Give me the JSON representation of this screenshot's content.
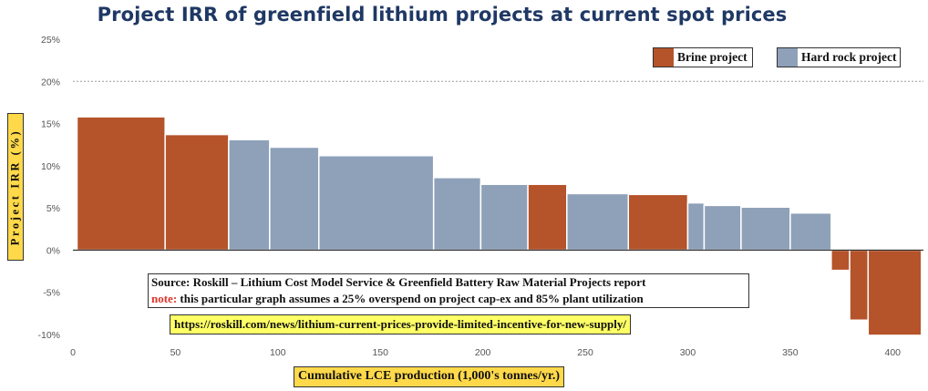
{
  "title": "Project IRR of greenfield lithium projects at current spot prices",
  "legend": {
    "brine_label": "Brine project",
    "hardrock_label": "Hard rock project"
  },
  "colors": {
    "brine": "#b5532a",
    "hard_rock": "#8ea1b9",
    "title": "#1f3864",
    "label_box": "#ffd94a",
    "url_box": "#ffff66",
    "note": "#e0342a"
  },
  "source": {
    "line1": "Source: Roskill – Lithium Cost Model Service & Greenfield Battery Raw Material Projects report",
    "note_label": "note:",
    "note_text": " this particular graph assumes a 25% overspend on project cap-ex and 85% plant utilization"
  },
  "url": "https://roskill.com/news/lithium-current-prices-provide-limited-incentive-for-new-supply/",
  "chart_data": {
    "type": "bar",
    "title": "Project IRR of greenfield lithium projects at current spot prices",
    "xlabel": "Cumulative LCE production (1,000's tonnes/yr.)",
    "ylabel": "Project IRR (%)",
    "xlim": [
      0,
      415
    ],
    "ylim": [
      -10,
      25
    ],
    "x_ticks": [
      0,
      50,
      100,
      150,
      200,
      250,
      300,
      350,
      400
    ],
    "y_ticks": [
      25,
      20,
      15,
      10,
      5,
      0,
      -5,
      -10
    ],
    "y_tick_labels": [
      "25%",
      "20%",
      "15%",
      "10%",
      "5%",
      "0%",
      "-5%",
      "-10%"
    ],
    "reference_line": 20,
    "grid": false,
    "legend_position": "top-right",
    "series": [
      {
        "name": "Brine project",
        "key": "brine"
      },
      {
        "name": "Hard rock project",
        "key": "hard_rock"
      }
    ],
    "bars": [
      {
        "x_start": 2,
        "x_end": 45,
        "value": 15.8,
        "type": "brine"
      },
      {
        "x_start": 45,
        "x_end": 76,
        "value": 13.7,
        "type": "brine"
      },
      {
        "x_start": 76,
        "x_end": 96,
        "value": 13.1,
        "type": "hard_rock"
      },
      {
        "x_start": 96,
        "x_end": 120,
        "value": 12.2,
        "type": "hard_rock"
      },
      {
        "x_start": 120,
        "x_end": 176,
        "value": 11.2,
        "type": "hard_rock"
      },
      {
        "x_start": 176,
        "x_end": 199,
        "value": 8.6,
        "type": "hard_rock"
      },
      {
        "x_start": 199,
        "x_end": 222,
        "value": 7.8,
        "type": "hard_rock"
      },
      {
        "x_start": 222,
        "x_end": 241,
        "value": 7.8,
        "type": "brine"
      },
      {
        "x_start": 241,
        "x_end": 271,
        "value": 6.7,
        "type": "hard_rock"
      },
      {
        "x_start": 271,
        "x_end": 300,
        "value": 6.6,
        "type": "brine"
      },
      {
        "x_start": 300,
        "x_end": 308,
        "value": 5.6,
        "type": "hard_rock"
      },
      {
        "x_start": 308,
        "x_end": 326,
        "value": 5.3,
        "type": "hard_rock"
      },
      {
        "x_start": 326,
        "x_end": 350,
        "value": 5.1,
        "type": "hard_rock"
      },
      {
        "x_start": 350,
        "x_end": 370,
        "value": 4.4,
        "type": "hard_rock"
      },
      {
        "x_start": 370,
        "x_end": 379,
        "value": -2.4,
        "type": "brine"
      },
      {
        "x_start": 379,
        "x_end": 388,
        "value": -8.3,
        "type": "brine"
      },
      {
        "x_start": 388,
        "x_end": 414,
        "value": -10.1,
        "type": "brine"
      }
    ]
  }
}
